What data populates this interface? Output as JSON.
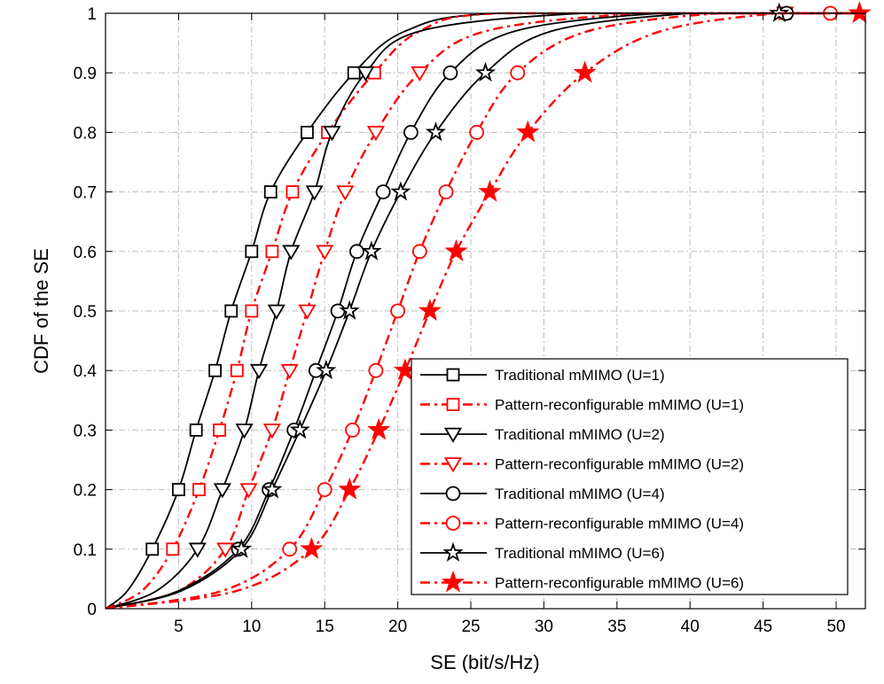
{
  "chart_data": {
    "type": "line",
    "title": "",
    "xlabel": "SE (bit/s/Hz)",
    "ylabel": "CDF of the SE",
    "xlim": [
      0,
      52
    ],
    "ylim": [
      0,
      1
    ],
    "xticks": [
      5,
      10,
      15,
      20,
      25,
      30,
      35,
      40,
      45,
      50
    ],
    "yticks": [
      0,
      0.1,
      0.2,
      0.3,
      0.4,
      0.5,
      0.6,
      0.7,
      0.8,
      0.9,
      1
    ],
    "xtick_labels": [
      "5",
      "10",
      "15",
      "20",
      "25",
      "30",
      "35",
      "40",
      "45",
      "50"
    ],
    "ytick_labels": [
      "0",
      "0.1",
      "0.2",
      "0.3",
      "0.4",
      "0.5",
      "0.6",
      "0.7",
      "0.8",
      "0.9",
      "1"
    ],
    "grid": true,
    "legend_position": "bottom-right",
    "series": [
      {
        "name": "Traditional mMIMO (U=1)",
        "color": "#000000",
        "dash": "solid",
        "marker": "square",
        "filled": false,
        "x": [
          0.0,
          1.5,
          3.2,
          5.0,
          6.2,
          7.5,
          8.6,
          10.0,
          11.3,
          13.8,
          17.0,
          20.5,
          26.9,
          46.5,
          52.0
        ],
        "y": [
          0.0,
          0.03,
          0.1,
          0.2,
          0.3,
          0.4,
          0.5,
          0.6,
          0.7,
          0.8,
          0.9,
          0.97,
          1.0,
          1.0,
          1.0
        ]
      },
      {
        "name": "Pattern-reconfigurable mMIMO (U=1)",
        "color": "#ff0000",
        "dash": "dashdot",
        "marker": "square",
        "filled": false,
        "x": [
          0.0,
          2.5,
          4.6,
          6.4,
          7.8,
          9.0,
          10.0,
          11.4,
          12.8,
          15.2,
          18.4,
          21.5,
          26.9,
          46.5,
          52.0
        ],
        "y": [
          0.0,
          0.03,
          0.1,
          0.2,
          0.3,
          0.4,
          0.5,
          0.6,
          0.7,
          0.8,
          0.9,
          0.97,
          1.0,
          1.0,
          1.0
        ]
      },
      {
        "name": "Traditional mMIMO (U=2)",
        "color": "#000000",
        "dash": "solid",
        "marker": "triangle-down",
        "filled": false,
        "x": [
          0.0,
          3.5,
          6.3,
          8.0,
          9.5,
          10.5,
          11.7,
          12.7,
          14.3,
          15.5,
          17.8,
          21.5,
          32.7,
          46.5,
          52.0
        ],
        "y": [
          0.0,
          0.03,
          0.1,
          0.2,
          0.3,
          0.4,
          0.5,
          0.6,
          0.7,
          0.8,
          0.9,
          0.97,
          1.0,
          1.0,
          1.0
        ]
      },
      {
        "name": "Pattern-reconfigurable mMIMO (U=2)",
        "color": "#ff0000",
        "dash": "dashdot",
        "marker": "triangle-down",
        "filled": false,
        "x": [
          0.0,
          5.0,
          8.2,
          9.8,
          11.4,
          12.6,
          13.8,
          15.0,
          16.4,
          18.5,
          21.5,
          26.0,
          36.8,
          46.5,
          52.0
        ],
        "y": [
          0.0,
          0.03,
          0.1,
          0.2,
          0.3,
          0.4,
          0.5,
          0.6,
          0.7,
          0.8,
          0.9,
          0.97,
          1.0,
          1.0,
          1.0
        ]
      },
      {
        "name": "Traditional mMIMO (U=4)",
        "color": "#000000",
        "dash": "solid",
        "marker": "circle",
        "filled": false,
        "x": [
          0.0,
          5.0,
          9.1,
          11.2,
          12.9,
          14.4,
          15.9,
          17.2,
          19.0,
          20.9,
          23.6,
          28.0,
          38.0,
          46.6,
          52.0
        ],
        "y": [
          0.0,
          0.03,
          0.1,
          0.2,
          0.3,
          0.4,
          0.5,
          0.6,
          0.7,
          0.8,
          0.9,
          0.97,
          1.0,
          1.0,
          1.0
        ]
      },
      {
        "name": "Pattern-reconfigurable mMIMO (U=4)",
        "color": "#ff0000",
        "dash": "dashdot",
        "marker": "circle",
        "filled": false,
        "x": [
          0.0,
          8.0,
          12.6,
          15.0,
          16.9,
          18.5,
          20.0,
          21.5,
          23.3,
          25.4,
          28.2,
          33.0,
          42.0,
          49.6,
          52.0
        ],
        "y": [
          0.0,
          0.03,
          0.1,
          0.2,
          0.3,
          0.4,
          0.5,
          0.6,
          0.7,
          0.8,
          0.9,
          0.97,
          1.0,
          1.0,
          1.0
        ]
      },
      {
        "name": "Traditional mMIMO (U=6)",
        "color": "#000000",
        "dash": "solid",
        "marker": "star",
        "filled": false,
        "x": [
          0.0,
          5.2,
          9.3,
          11.4,
          13.3,
          15.1,
          16.7,
          18.2,
          20.2,
          22.6,
          26.0,
          30.5,
          40.0,
          46.1,
          52.0
        ],
        "y": [
          0.0,
          0.03,
          0.1,
          0.2,
          0.3,
          0.4,
          0.5,
          0.6,
          0.7,
          0.8,
          0.9,
          0.97,
          1.0,
          1.0,
          1.0
        ]
      },
      {
        "name": "Pattern-reconfigurable mMIMO (U=6)",
        "color": "#ff0000",
        "dash": "dashdot",
        "marker": "star",
        "filled": true,
        "x": [
          0.0,
          9.0,
          14.1,
          16.7,
          18.7,
          20.5,
          22.2,
          24.0,
          26.3,
          28.9,
          32.8,
          38.0,
          46.0,
          51.6,
          52.0
        ],
        "y": [
          0.0,
          0.03,
          0.1,
          0.2,
          0.3,
          0.4,
          0.5,
          0.6,
          0.7,
          0.8,
          0.9,
          0.97,
          1.0,
          1.0,
          1.0
        ]
      }
    ]
  },
  "colors": {
    "traditional": "#000000",
    "reconfigurable": "#ff0000",
    "grid": "#bdbdbd"
  }
}
